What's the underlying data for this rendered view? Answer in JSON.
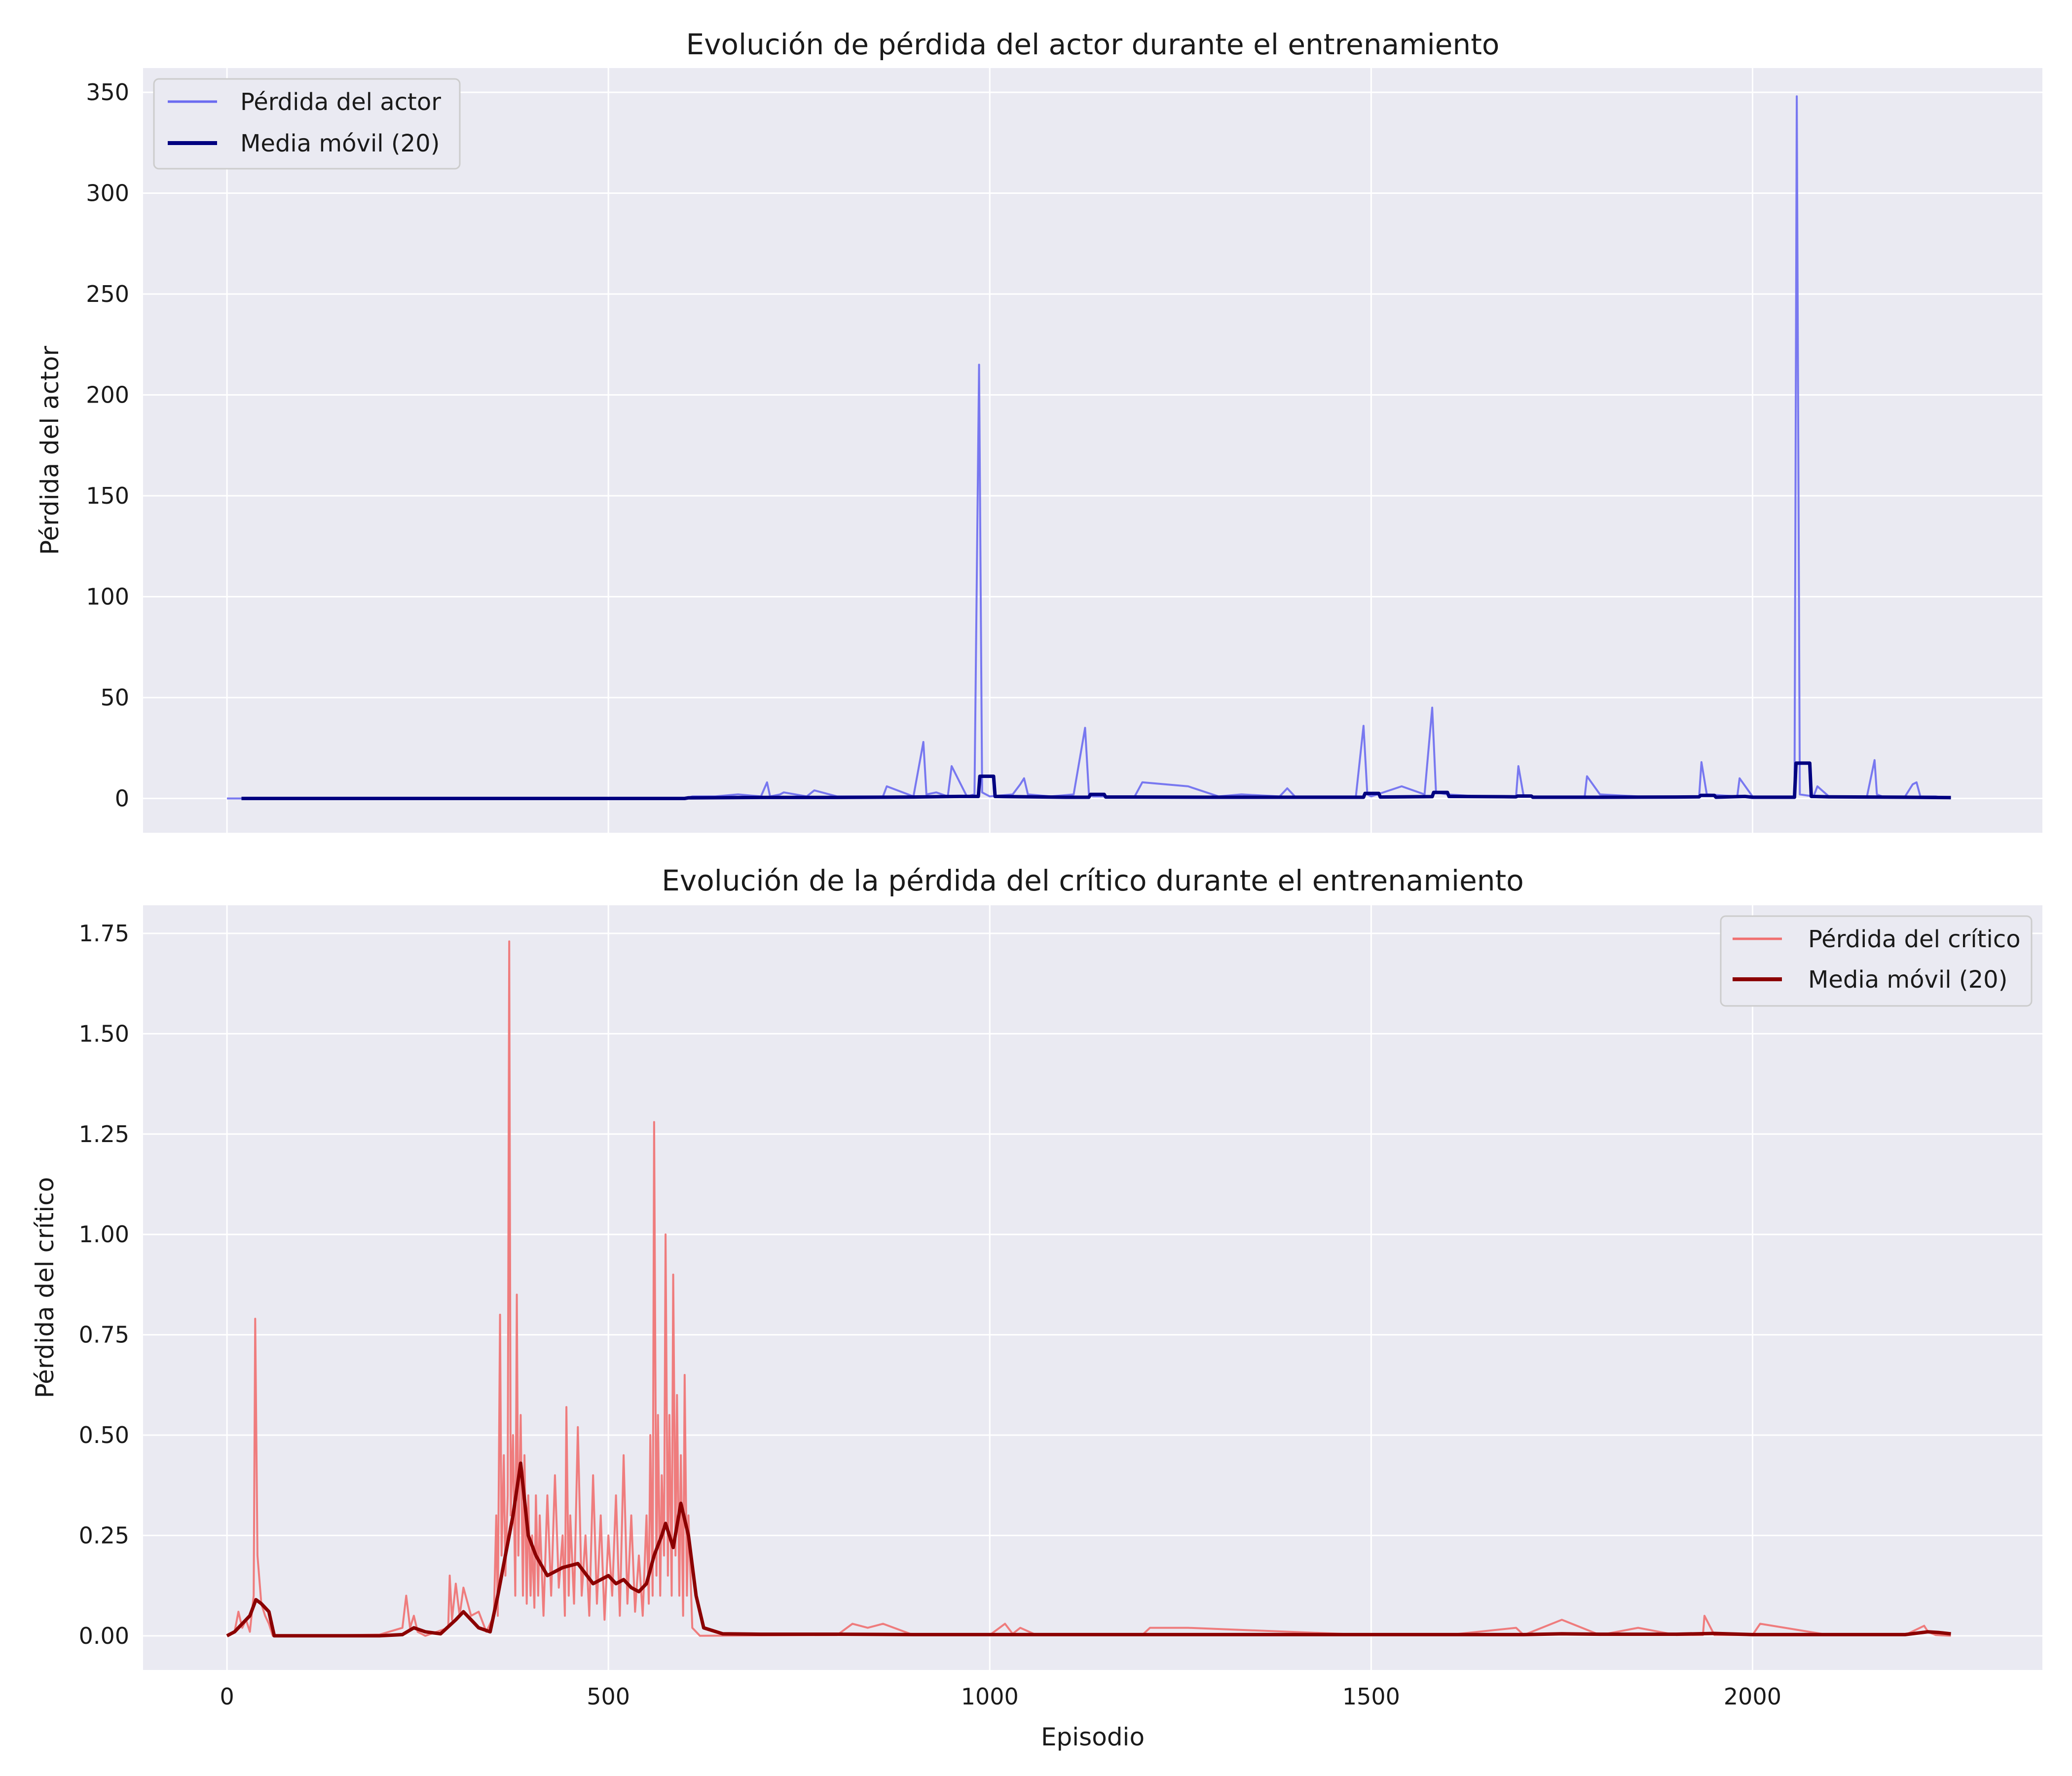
{
  "chart_data": [
    {
      "type": "line",
      "title": "Evolución de pérdida del actor durante el entrenamiento",
      "xlabel": "",
      "ylabel": "Pérdida del actor",
      "xlim": [
        -110,
        2380
      ],
      "ylim": [
        -17,
        362
      ],
      "xticks": [
        0,
        500,
        1000,
        1500,
        2000
      ],
      "xtick_labels": [],
      "yticks": [
        0,
        50,
        100,
        150,
        200,
        250,
        300,
        350
      ],
      "ytick_labels": [
        "0",
        "50",
        "100",
        "150",
        "200",
        "250",
        "300",
        "350"
      ],
      "grid": true,
      "legend_position": "top-left",
      "series": [
        {
          "name": "Pérdida del actor",
          "color": "#6b6bf0",
          "style": "thin",
          "x": [
            0,
            100,
            200,
            300,
            400,
            500,
            600,
            610,
            640,
            670,
            700,
            708,
            712,
            725,
            730,
            760,
            770,
            800,
            830,
            860,
            865,
            900,
            913,
            917,
            930,
            945,
            950,
            970,
            980,
            986,
            990,
            1000,
            1030,
            1040,
            1045,
            1050,
            1080,
            1110,
            1125,
            1130,
            1135,
            1160,
            1190,
            1200,
            1260,
            1300,
            1330,
            1380,
            1390,
            1400,
            1430,
            1480,
            1490,
            1495,
            1500,
            1540,
            1570,
            1580,
            1585,
            1600,
            1640,
            1690,
            1693,
            1700,
            1780,
            1783,
            1800,
            1850,
            1900,
            1930,
            1933,
            1940,
            1980,
            1983,
            2000,
            2040,
            2055,
            2058,
            2062,
            2080,
            2085,
            2100,
            2150,
            2160,
            2163,
            2170,
            2200,
            2210,
            2215,
            2220,
            2240,
            2260
          ],
          "y": [
            0,
            0,
            0,
            0,
            0,
            0,
            0,
            1,
            1,
            2,
            1,
            8,
            1,
            2,
            3,
            1,
            4,
            1,
            1,
            1,
            6,
            1,
            28,
            2,
            3,
            1,
            16,
            1,
            2,
            215,
            3,
            1,
            2,
            7,
            10,
            2,
            1,
            2,
            35,
            2,
            1,
            1,
            1,
            8,
            6,
            1,
            2,
            1,
            5,
            1,
            1,
            1,
            36,
            2,
            1,
            6,
            2,
            45,
            3,
            2,
            1,
            1,
            16,
            1,
            1,
            11,
            2,
            1,
            1,
            1,
            18,
            2,
            1,
            10,
            1,
            1,
            1,
            348,
            2,
            1,
            6,
            1,
            1,
            19,
            2,
            1,
            1,
            7,
            8,
            1,
            1,
            0
          ]
        },
        {
          "name": "Media móvil (20)",
          "color": "#000080",
          "style": "thick",
          "x": [
            19,
            300,
            600,
            605,
            700,
            800,
            900,
            960,
            985,
            987,
            1005,
            1007,
            1100,
            1130,
            1132,
            1150,
            1152,
            1300,
            1400,
            1490,
            1492,
            1510,
            1512,
            1580,
            1582,
            1600,
            1602,
            1690,
            1692,
            1710,
            1712,
            1800,
            1900,
            1930,
            1932,
            1950,
            1952,
            1990,
            2000,
            2040,
            2055,
            2057,
            2075,
            2077,
            2100,
            2200,
            2260
          ],
          "y": [
            0,
            0,
            0,
            0.3,
            0.5,
            0.5,
            0.7,
            1,
            1,
            11,
            11,
            1,
            0.6,
            0.6,
            2,
            2,
            0.7,
            0.6,
            0.6,
            0.6,
            2.5,
            2.5,
            0.7,
            0.9,
            3,
            3,
            1,
            0.8,
            1.2,
            1.2,
            0.6,
            0.6,
            0.7,
            0.8,
            1.5,
            1.5,
            0.6,
            1,
            0.6,
            0.6,
            0.6,
            17.5,
            17.5,
            1,
            0.8,
            0.6,
            0.4
          ]
        }
      ]
    },
    {
      "type": "line",
      "title": "Evolución de la pérdida del crítico durante el entrenamiento",
      "xlabel": "Episodio",
      "ylabel": "Pérdida del crítico",
      "xlim": [
        -110,
        2380
      ],
      "ylim": [
        -0.085,
        1.82
      ],
      "xticks": [
        0,
        500,
        1000,
        1500,
        2000
      ],
      "xtick_labels": [
        "0",
        "500",
        "1000",
        "1500",
        "2000"
      ],
      "yticks": [
        0,
        0.25,
        0.5,
        0.75,
        1.0,
        1.25,
        1.5,
        1.75
      ],
      "ytick_labels": [
        "0.00",
        "0.25",
        "0.50",
        "0.75",
        "1.00",
        "1.25",
        "1.50",
        "1.75"
      ],
      "grid": true,
      "legend_position": "top-right",
      "series": [
        {
          "name": "Pérdida del crítico",
          "color": "#f07070",
          "style": "thin",
          "x": [
            0,
            10,
            15,
            20,
            25,
            30,
            35,
            37,
            40,
            45,
            50,
            55,
            60,
            100,
            200,
            230,
            235,
            240,
            245,
            250,
            260,
            290,
            292,
            295,
            300,
            305,
            310,
            320,
            330,
            340,
            350,
            353,
            355,
            358,
            360,
            363,
            365,
            368,
            370,
            372,
            375,
            378,
            380,
            382,
            385,
            388,
            390,
            393,
            395,
            398,
            400,
            403,
            405,
            408,
            410,
            415,
            420,
            425,
            430,
            435,
            440,
            443,
            445,
            448,
            450,
            455,
            460,
            465,
            470,
            475,
            480,
            485,
            490,
            495,
            500,
            505,
            510,
            515,
            520,
            525,
            530,
            535,
            540,
            545,
            550,
            553,
            555,
            558,
            560,
            563,
            565,
            568,
            570,
            573,
            575,
            578,
            580,
            583,
            585,
            588,
            590,
            593,
            595,
            598,
            600,
            603,
            605,
            610,
            620,
            700,
            800,
            820,
            840,
            860,
            900,
            1000,
            1020,
            1030,
            1040,
            1060,
            1200,
            1210,
            1260,
            1500,
            1600,
            1690,
            1700,
            1750,
            1800,
            1850,
            1900,
            1935,
            1937,
            1950,
            2000,
            2010,
            2100,
            2200,
            2225,
            2230,
            2240,
            2260
          ],
          "y": [
            0,
            0.01,
            0.06,
            0.02,
            0.04,
            0.01,
            0.1,
            0.79,
            0.2,
            0.08,
            0.05,
            0.03,
            0,
            0,
            0.003,
            0.02,
            0.1,
            0.02,
            0.05,
            0.01,
            0,
            0.02,
            0.15,
            0.04,
            0.13,
            0.05,
            0.12,
            0.05,
            0.06,
            0.01,
            0.05,
            0.3,
            0.05,
            0.8,
            0.2,
            0.45,
            0.15,
            0.35,
            1.73,
            0.3,
            0.5,
            0.1,
            0.85,
            0.2,
            0.55,
            0.1,
            0.45,
            0.08,
            0.35,
            0.1,
            0.25,
            0.07,
            0.35,
            0.1,
            0.3,
            0.05,
            0.35,
            0.1,
            0.4,
            0.12,
            0.25,
            0.05,
            0.57,
            0.1,
            0.3,
            0.08,
            0.52,
            0.1,
            0.25,
            0.05,
            0.4,
            0.08,
            0.3,
            0.04,
            0.25,
            0.1,
            0.35,
            0.05,
            0.45,
            0.08,
            0.3,
            0.06,
            0.2,
            0.05,
            0.3,
            0.08,
            0.5,
            0.1,
            1.28,
            0.15,
            0.55,
            0.1,
            0.4,
            0.2,
            1.0,
            0.15,
            0.55,
            0.1,
            0.9,
            0.2,
            0.6,
            0.1,
            0.45,
            0.05,
            0.65,
            0.1,
            0.3,
            0.02,
            0,
            0.001,
            0.002,
            0.03,
            0.02,
            0.03,
            0.002,
            0.002,
            0.03,
            0.005,
            0.02,
            0.003,
            0.002,
            0.02,
            0.02,
            0.002,
            0.002,
            0.02,
            0.002,
            0.04,
            0.002,
            0.02,
            0.002,
            0.002,
            0.05,
            0.002,
            0.002,
            0.03,
            0.002,
            0.002,
            0.025,
            0.01,
            0.002,
            0
          ]
        },
        {
          "name": "Media móvil (20)",
          "color": "#8b0000",
          "style": "thick",
          "x": [
            0,
            10,
            20,
            30,
            38,
            45,
            55,
            62,
            100,
            200,
            230,
            245,
            260,
            280,
            300,
            310,
            320,
            330,
            345,
            355,
            365,
            375,
            385,
            395,
            405,
            420,
            440,
            460,
            480,
            500,
            510,
            520,
            530,
            540,
            550,
            560,
            570,
            575,
            585,
            595,
            605,
            615,
            625,
            650,
            700,
            800,
            900,
            1000,
            1500,
            1700,
            1750,
            1800,
            1900,
            1950,
            2000,
            2200,
            2230,
            2245,
            2260
          ],
          "y": [
            0,
            0.01,
            0.03,
            0.05,
            0.09,
            0.08,
            0.06,
            0,
            0,
            0,
            0.003,
            0.02,
            0.01,
            0.005,
            0.04,
            0.06,
            0.04,
            0.02,
            0.01,
            0.1,
            0.2,
            0.3,
            0.43,
            0.25,
            0.2,
            0.15,
            0.17,
            0.18,
            0.13,
            0.15,
            0.13,
            0.14,
            0.12,
            0.11,
            0.13,
            0.2,
            0.25,
            0.28,
            0.22,
            0.33,
            0.25,
            0.1,
            0.02,
            0.005,
            0.004,
            0.004,
            0.003,
            0.003,
            0.003,
            0.003,
            0.005,
            0.004,
            0.004,
            0.006,
            0.003,
            0.003,
            0.01,
            0.008,
            0.005
          ]
        }
      ]
    }
  ]
}
